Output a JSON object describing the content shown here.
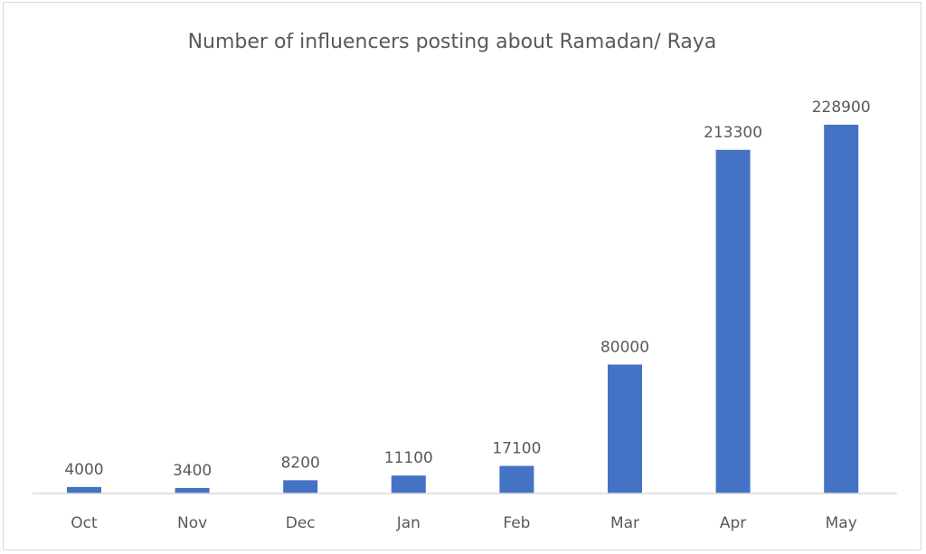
{
  "chart_data": {
    "type": "bar",
    "title": "Number of influencers posting about Ramadan/ Raya",
    "xlabel": "",
    "ylabel": "",
    "categories": [
      "Oct",
      "Nov",
      "Dec",
      "Jan",
      "Feb",
      "Mar",
      "Apr",
      "May"
    ],
    "values": [
      4000,
      3400,
      8200,
      11100,
      17100,
      80000,
      213300,
      228900
    ],
    "ylim": [
      0,
      228900
    ],
    "grid": false,
    "legend": "none",
    "bar_color": "#4472c4",
    "text_color": "#595959",
    "axis_color": "#d9d9d9"
  }
}
